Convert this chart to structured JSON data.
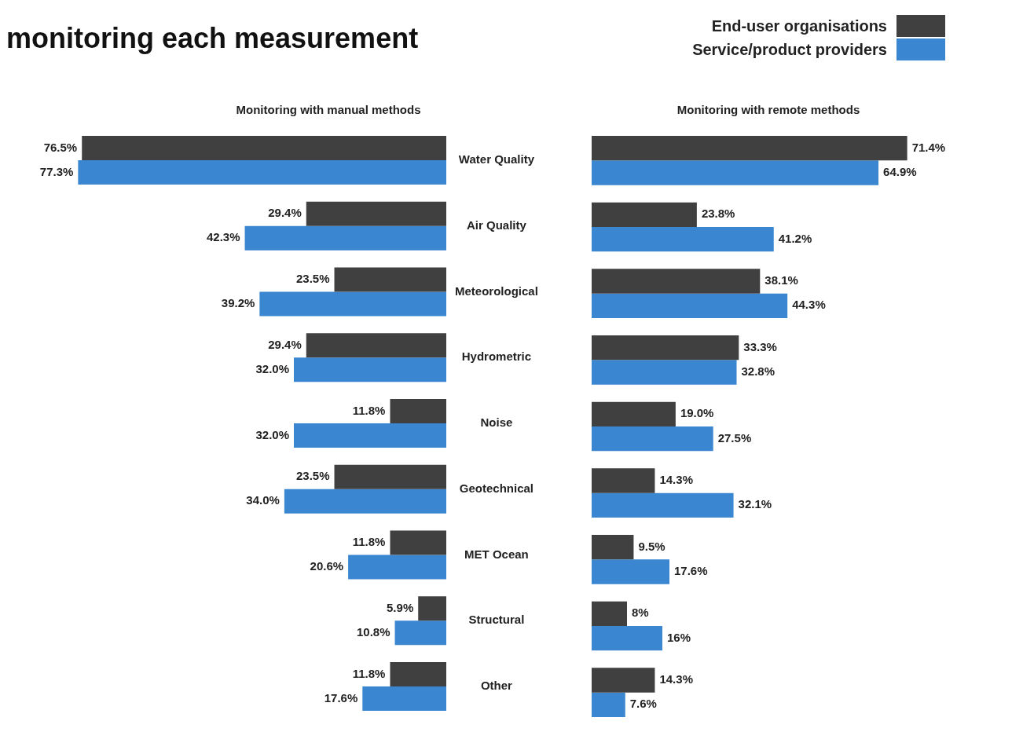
{
  "chart_data": [
    {
      "type": "bar",
      "orientation": "horizontal",
      "title": "monitoring each measurement",
      "subtitle": "Monitoring with manual methods",
      "categories": [
        "Water Quality",
        "Air Quality",
        "Meteorological",
        "Hydrometric",
        "Noise",
        "Geotechnical",
        "MET Ocean",
        "Structural",
        "Other"
      ],
      "legend": false,
      "series": [
        {
          "color": "#404040",
          "values": [
            76.5,
            29.4,
            23.5,
            29.4,
            11.8,
            23.5,
            11.8,
            5.9,
            11.8
          ],
          "value_labels": [
            "76.5%",
            "29.4%",
            "23.5%",
            "29.4%",
            "11.8%",
            "23.5%",
            "11.8%",
            "5.9%",
            "11.8%"
          ]
        },
        {
          "color": "#3a86d0",
          "values": [
            77.3,
            42.3,
            39.2,
            32.0,
            32.0,
            34.0,
            20.6,
            10.8,
            17.6
          ],
          "value_labels": [
            "77.3%",
            "42.3%",
            "39.2%",
            "32.0%",
            "32.0%",
            "34.0%",
            "20.6%",
            "10.8%",
            "17.6%"
          ]
        }
      ]
    },
    {
      "type": "bar",
      "orientation": "horizontal",
      "subtitle": "Monitoring with remote methods",
      "categories": [
        null,
        null,
        null,
        null,
        null,
        null,
        null,
        null,
        null
      ],
      "tick_labels": false,
      "legend": "top right",
      "series": [
        {
          "name": "End-user organisations",
          "color": "#404040",
          "values": [
            71.4,
            23.8,
            38.1,
            33.3,
            19.0,
            14.3,
            9.5,
            8,
            14.3
          ],
          "value_labels": [
            "71.4%",
            "23.8%",
            "38.1%",
            "33.3%",
            "19.0%",
            "14.3%",
            "9.5%",
            "8%",
            "14.3%"
          ]
        },
        {
          "name": "Service/product providers",
          "color": "#3a86d0",
          "values": [
            64.9,
            41.2,
            44.3,
            32.8,
            27.5,
            32.1,
            17.6,
            16,
            7.6
          ],
          "value_labels": [
            "64.9%",
            "41.2%",
            "44.3%",
            "32.8%",
            "27.5%",
            "32.1%",
            "17.6%",
            "16%",
            "7.6%"
          ]
        }
      ]
    }
  ]
}
